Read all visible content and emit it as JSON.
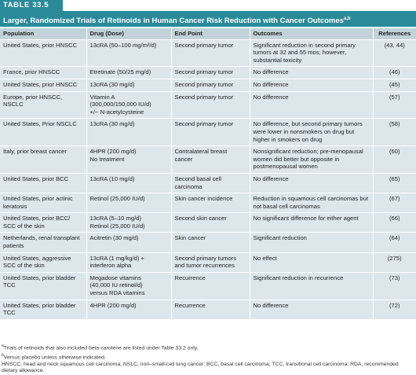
{
  "table_label": "TABLE 33.5",
  "title": {
    "text": "Larger, Randomized Trials of Retinoids in Human Cancer Risk Reduction with Cancer Outcomes",
    "sup": "a,b"
  },
  "table": {
    "headers": [
      "Population",
      "Drug (Dose)",
      "End Point",
      "Outcomes",
      "References"
    ],
    "rows": [
      [
        "United States, prior HNSCC",
        "13cRA (50–100 mg/m²/d)",
        "Second primary tumor",
        "Significant reduction in second primary tumors at 32 and 55 mos; however, substantial toxicity",
        "(43, 44)"
      ],
      [
        "France, prior HNSCC",
        "Etretinate (50/25 mg/d)",
        "Second primary tumor",
        "No difference",
        "(46)"
      ],
      [
        "United States, prior HNSCC",
        "13cRA (30 mg/d)",
        "Second primary tumor",
        "No difference",
        "(45)"
      ],
      [
        "Europe, prior HNSCC, NSCLC",
        [
          "Vitamin A",
          "(300,000/150,000 IU/d)",
          "+/− N-acetylcysteine"
        ],
        "Second primary tumor",
        "No difference",
        "(57)"
      ],
      [
        "United States, Prior NSCLC",
        "13cRA (30 mg/d)",
        "Second primary tumor",
        "No difference, but second primary tumors were lower in nonsmokers on drug but higher in smokers on drug",
        "(58)"
      ],
      [
        "Italy, prior breast cancer",
        [
          "4HPR (200 mg/d)",
          "No treatment"
        ],
        "Contralateral breast cancer",
        "Nonsignificant reduction; pre-menopausal women did better but opposite in postmenopausal women",
        "(60)"
      ],
      [
        "United States, prior BCC",
        "13cRA (10 mg/d)",
        "Second basal cell carcinoma",
        "No difference",
        "(65)"
      ],
      [
        "United States, prior actinic keratosis",
        "Retinol (25,000 IU/d)",
        "Skin cancer incidence",
        "Reduction in squamous cell carcinomas but not basal cell carcinomas",
        "(67)"
      ],
      [
        "United States, prior BCC/ SCC of the skin",
        [
          "13cRA (5–10 mg/d)",
          "Retinol (25,000 IU/d)"
        ],
        "Second skin cancer",
        "No significant difference for either agent",
        "(66)"
      ],
      [
        "Netherlands, renal transplant patients",
        "Acitretin (30 mg/d)",
        "Skin cancer",
        "Significant reduction",
        "(64)"
      ],
      [
        "United States, aggressive SCC of the skin",
        "13cRA (1 mg/kg/d) + interferon alpha",
        "Second primary tumors and tumor recurrences",
        "No effect",
        "(275)"
      ],
      [
        "United States, prior bladder TCC",
        [
          "Megadose vitamins",
          "(40,000 IU retinol/d)",
          "versus RDA vitamins"
        ],
        "Recurrence",
        "Significant reduction in recurrence",
        "(73)"
      ],
      [
        "United States, prior bladder TCC",
        "4HPR (200 mg/d)",
        "Recurrence",
        "No difference",
        "(72)"
      ]
    ]
  },
  "footnotes": [
    {
      "marker": "a",
      "text": "Trials of retinoids that also included beta-carotene are listed under Table 33.2 only."
    },
    {
      "marker": "b",
      "text": "Versus placebo unless otherwise indicated."
    },
    {
      "text": "HNSCC, head and neck squamous cell carcinoma; NSLC, non–small-cell lung cancer; BCC, basal cell carcinoma; TCC, transitional cell carcinoma; RDA, recommended dietary allowance."
    }
  ]
}
